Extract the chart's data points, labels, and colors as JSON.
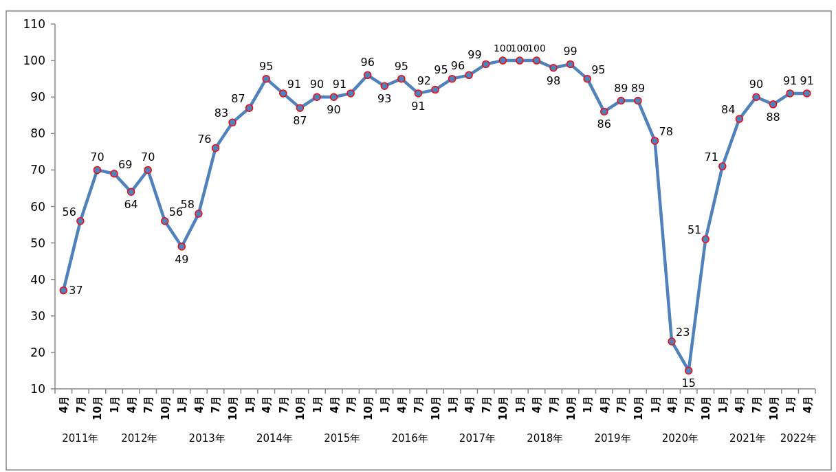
{
  "chart_data": {
    "type": "line",
    "categories": [
      "4月",
      "7月",
      "10月",
      "1月",
      "4月",
      "7月",
      "10月",
      "1月",
      "4月",
      "7月",
      "10月",
      "1月",
      "4月",
      "7月",
      "10月",
      "1月",
      "4月",
      "7月",
      "10月",
      "1月",
      "4月",
      "7月",
      "10月",
      "1月",
      "4月",
      "7月",
      "10月",
      "1月",
      "4月",
      "7月",
      "10月",
      "1月",
      "4月",
      "7月",
      "10月",
      "1月",
      "4月",
      "7月",
      "10月",
      "1月",
      "4月",
      "7月",
      "10月",
      "1月",
      "4月"
    ],
    "series": [
      {
        "color": "#4f81bd",
        "values": [
          37,
          56,
          70,
          69,
          64,
          70,
          56,
          49,
          58,
          76,
          83,
          87,
          95,
          91,
          87,
          90,
          90,
          91,
          96,
          93,
          95,
          91,
          92,
          95,
          96,
          99,
          100,
          100,
          100,
          98,
          99,
          95,
          86,
          89,
          89,
          78,
          23,
          15,
          51,
          71,
          84,
          90,
          88,
          91,
          91
        ]
      }
    ],
    "annotations": [
      "2011年",
      "2012年",
      "2013年",
      "2014年",
      "2015年",
      "2016年",
      "2017年",
      "2018年",
      "2019年",
      "2020年",
      "2021年",
      "2022年"
    ],
    "ylim": [
      10,
      110
    ],
    "yticks": [
      10,
      20,
      30,
      40,
      50,
      60,
      70,
      80,
      90,
      100,
      110
    ],
    "data_labels": true,
    "marker": "circle",
    "line_style": "solid",
    "grid": false
  }
}
